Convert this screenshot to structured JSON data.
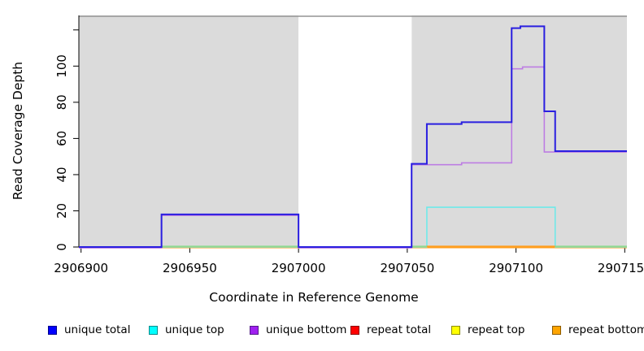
{
  "chart_data": {
    "type": "line",
    "subtype": "step-coverage-plot",
    "title": "",
    "xlabel": "Coordinate in Reference Genome",
    "ylabel": "Read Coverage Depth",
    "xlim": [
      2906899,
      2907151
    ],
    "ylim": [
      0,
      128
    ],
    "grid": false,
    "legend_position": "bottom",
    "x_ticks": {
      "values": [
        2906900,
        2906950,
        2907000,
        2907050,
        2907100,
        2907150
      ],
      "labels": [
        "2906900",
        "2906950",
        "2907000",
        "2907050",
        "2907100",
        "2907150"
      ]
    },
    "y_ticks": {
      "values": [
        0,
        20,
        40,
        60,
        80,
        100,
        120
      ],
      "labels": [
        "0",
        "20",
        "40",
        "60",
        "80",
        "100",
        ""
      ]
    },
    "background": {
      "panel_color": "#dbdbdb",
      "gap_color": "#ffffff",
      "panel_regions": [
        [
          2906899,
          2907000
        ],
        [
          2907052,
          2907151
        ]
      ],
      "gap_region": [
        2907000,
        2907052
      ],
      "top_border_color": "#949494",
      "axis_color": "#000000"
    },
    "series": [
      {
        "name": "unique total",
        "color": "#2a1fe0",
        "width": 2,
        "steps": [
          [
            2906899,
            2906937,
            0
          ],
          [
            2906937,
            2907000,
            18
          ],
          [
            2907000,
            2907052,
            0
          ],
          [
            2907052,
            2907059,
            46
          ],
          [
            2907059,
            2907075,
            68
          ],
          [
            2907075,
            2907098,
            69
          ],
          [
            2907098,
            2907102,
            121
          ],
          [
            2907102,
            2907113,
            122
          ],
          [
            2907113,
            2907118,
            75
          ],
          [
            2907118,
            2907151,
            53
          ]
        ]
      },
      {
        "name": "unique top",
        "color": "#6fe9e9",
        "width": 1.6,
        "steps": [
          [
            2906899,
            2907059,
            0
          ],
          [
            2907059,
            2907118,
            22
          ],
          [
            2907118,
            2907151,
            0
          ]
        ]
      },
      {
        "name": "unique bottom",
        "color": "#bd7de3",
        "width": 1.6,
        "steps": [
          [
            2906899,
            2906937,
            0
          ],
          [
            2906937,
            2907000,
            18
          ],
          [
            2907000,
            2907052,
            0
          ],
          [
            2907052,
            2907075,
            46
          ],
          [
            2907075,
            2907098,
            47
          ],
          [
            2907098,
            2907103,
            99
          ],
          [
            2907103,
            2907113,
            100
          ],
          [
            2907113,
            2907151,
            53
          ]
        ]
      },
      {
        "name": "repeat total",
        "color": "#e02020",
        "width": 1.6,
        "steps": [
          [
            2906899,
            2907151,
            0
          ]
        ]
      },
      {
        "name": "repeat top",
        "color": "#f2f23a",
        "width": 1.6,
        "steps": [
          [
            2906899,
            2907151,
            0
          ]
        ]
      },
      {
        "name": "repeat bottom",
        "color": "#ff9e1e",
        "width": 2,
        "steps": [
          [
            2906899,
            2907059,
            0
          ],
          [
            2907059,
            2907118,
            0
          ],
          [
            2907118,
            2907151,
            0
          ]
        ]
      }
    ],
    "baseline_overlays": [
      {
        "color": "#8fd98f",
        "from": 2906937,
        "to": 2907000
      },
      {
        "color": "#8fd98f",
        "from": 2907052,
        "to": 2907059
      },
      {
        "color": "#ff9e1e",
        "from": 2907059,
        "to": 2907118
      },
      {
        "color": "#8fd98f",
        "from": 2907118,
        "to": 2907151
      }
    ],
    "legend": [
      {
        "label": "unique total",
        "fill": "#0000ff",
        "border": "#00008b"
      },
      {
        "label": "unique top",
        "fill": "#00ffff",
        "border": "#008b8b"
      },
      {
        "label": "unique bottom",
        "fill": "#a020f0",
        "border": "#551a8b"
      },
      {
        "label": "repeat total",
        "fill": "#ff0000",
        "border": "#8b0000"
      },
      {
        "label": "repeat top",
        "fill": "#ffff00",
        "border": "#8b8b00"
      },
      {
        "label": "repeat bottom",
        "fill": "#ffa500",
        "border": "#8b5a00"
      }
    ]
  }
}
